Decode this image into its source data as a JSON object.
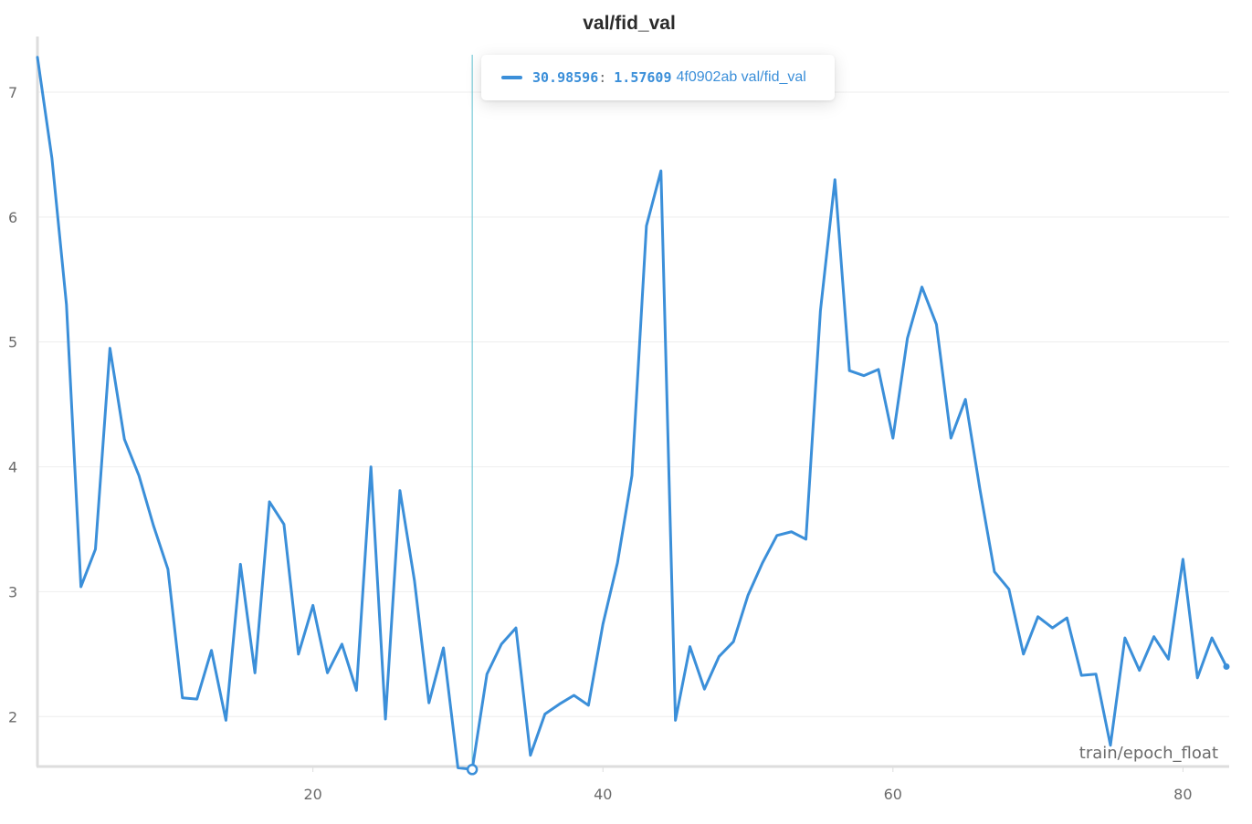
{
  "colors": {
    "series": "#3b8fd9",
    "hover_line": "#5bc0cf",
    "grid": "#eeeeee",
    "axis": "#dddddd",
    "text": "#6b6b6b",
    "title": "#2b2b2b"
  },
  "tooltip": {
    "x_value": "30.98596",
    "separator": ":",
    "y_value": "1.57609",
    "series_name": "4f0902ab val/fid_val"
  },
  "chart_data": {
    "type": "line",
    "title": "val/fid_val",
    "xlabel": "train/epoch_float",
    "ylabel": "",
    "xlim": [
      1,
      83
    ],
    "ylim": [
      1.6,
      7.3
    ],
    "x_ticks": [
      20,
      40,
      60,
      80
    ],
    "x_tick_labels": [
      "20",
      "40",
      "60",
      "80"
    ],
    "y_ticks": [
      2,
      3,
      4,
      5,
      6,
      7
    ],
    "y_tick_labels": [
      "2",
      "3",
      "4",
      "5",
      "6",
      "7"
    ],
    "grid": true,
    "hover_x": 30.98596,
    "series": [
      {
        "x": [
          1,
          2,
          3,
          4,
          5,
          6,
          7,
          8,
          9,
          10,
          11,
          12,
          13,
          14,
          15,
          16,
          17,
          18,
          19,
          20,
          21,
          22,
          23,
          24,
          25,
          26,
          27,
          28,
          29,
          30,
          30.98596,
          32,
          33,
          34,
          35,
          36,
          37,
          38,
          39,
          40,
          41,
          42,
          43,
          44,
          45,
          46,
          47,
          48,
          49,
          50,
          51,
          52,
          53,
          54,
          55,
          56,
          57,
          58,
          59,
          60,
          61,
          62,
          63,
          64,
          65,
          66,
          67,
          68,
          69,
          70,
          71,
          72,
          73,
          74,
          75,
          76,
          77,
          78,
          79,
          80,
          81,
          82,
          83
        ],
        "values": [
          7.28,
          6.47,
          5.3,
          3.04,
          3.34,
          4.95,
          4.22,
          3.93,
          3.53,
          3.18,
          2.15,
          2.14,
          2.53,
          1.97,
          3.22,
          2.35,
          3.72,
          3.54,
          2.5,
          2.89,
          2.35,
          2.58,
          2.21,
          4.0,
          1.98,
          3.81,
          3.09,
          2.11,
          2.55,
          1.59,
          1.57609,
          2.34,
          2.58,
          2.71,
          1.69,
          2.02,
          2.1,
          2.17,
          2.09,
          2.74,
          3.23,
          3.93,
          5.93,
          6.37,
          1.97,
          2.56,
          2.22,
          2.48,
          2.6,
          2.97,
          3.23,
          3.45,
          3.48,
          3.42,
          5.25,
          6.3,
          4.77,
          4.73,
          4.78,
          4.23,
          5.03,
          5.44,
          5.14,
          4.23,
          4.54,
          3.82,
          3.16,
          3.02,
          2.5,
          2.8,
          2.71,
          2.79,
          2.33,
          2.34,
          1.77,
          2.63,
          2.37,
          2.64,
          2.46,
          3.26,
          2.31,
          2.63,
          2.4
        ]
      }
    ]
  }
}
